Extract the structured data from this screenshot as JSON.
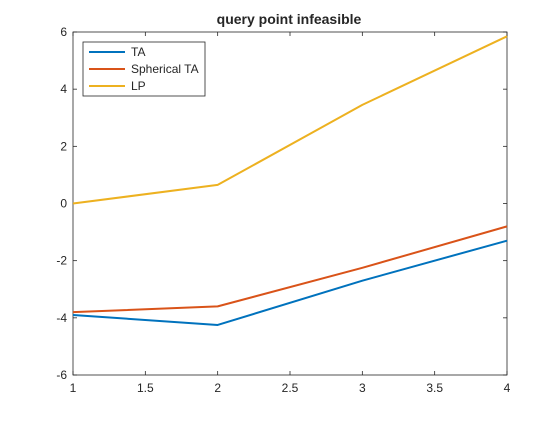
{
  "chart_data": {
    "type": "line",
    "title": "query point infeasible",
    "xlabel": "",
    "ylabel": "",
    "x": [
      1,
      2,
      3,
      4
    ],
    "xlim": [
      1,
      4
    ],
    "ylim": [
      -6,
      6
    ],
    "xticks": [
      1,
      1.5,
      2,
      2.5,
      3,
      3.5,
      4
    ],
    "xtick_labels": [
      "1",
      "1.5",
      "2",
      "2.5",
      "3",
      "3.5",
      "4"
    ],
    "yticks": [
      -6,
      -4,
      -2,
      0,
      2,
      4,
      6
    ],
    "ytick_labels": [
      "-6",
      "-4",
      "-2",
      "0",
      "2",
      "4",
      "6"
    ],
    "grid": false,
    "legend_location": "top-left",
    "series": [
      {
        "name": "TA",
        "color": "#0072BD",
        "values": [
          -3.9,
          -4.25,
          -2.7,
          -1.3
        ]
      },
      {
        "name": "Spherical TA",
        "color": "#D95319",
        "values": [
          -3.8,
          -3.6,
          -2.25,
          -0.8
        ]
      },
      {
        "name": "LP",
        "color": "#EDB120",
        "values": [
          0.0,
          0.65,
          3.45,
          5.85
        ]
      }
    ]
  }
}
